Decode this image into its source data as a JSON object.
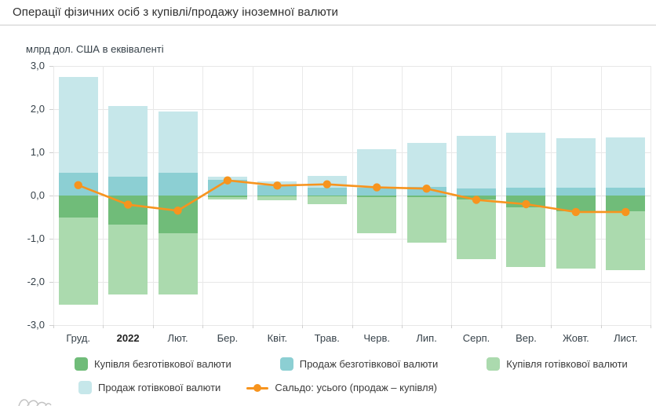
{
  "header": {
    "title": "Операції фізичних осіб з купівлі/продажу іноземної валюти"
  },
  "chart_data": {
    "type": "bar",
    "subtype": "stacked-bars-with-line",
    "unit_label": "млрд дол. США в еквіваленті",
    "categories": [
      "Груд.",
      "2022",
      "Лют.",
      "Бер.",
      "Квіт.",
      "Трав.",
      "Черв.",
      "Лип.",
      "Серп.",
      "Вер.",
      "Жовт.",
      "Лист."
    ],
    "emphasized_category_index": 1,
    "ylim": [
      -3,
      3
    ],
    "yticks": [
      {
        "value": 3,
        "label": "3,0"
      },
      {
        "value": 2,
        "label": "2,0"
      },
      {
        "value": 1,
        "label": "1,0"
      },
      {
        "value": 0,
        "label": "0,0"
      },
      {
        "value": -1,
        "label": "-1,0"
      },
      {
        "value": -2,
        "label": "-2,0"
      },
      {
        "value": -3,
        "label": "-3,0"
      }
    ],
    "grid": true,
    "series": [
      {
        "name": "Купівля безготівкової валюти",
        "color": "#70bc79",
        "values": [
          -0.5,
          -0.67,
          -0.87,
          -0.03,
          -0.02,
          -0.02,
          -0.03,
          -0.04,
          -0.09,
          -0.27,
          -0.36,
          -0.36
        ]
      },
      {
        "name": "Продаж безготівкової валюти",
        "color": "#8ccfd3",
        "values": [
          0.52,
          0.43,
          0.53,
          0.36,
          0.24,
          0.18,
          0.18,
          0.2,
          0.17,
          0.18,
          0.18,
          0.19
        ]
      },
      {
        "name": "Купівля готівкової валюти",
        "color": "#abdaae",
        "values": [
          -2.03,
          -1.63,
          -1.42,
          -0.07,
          -0.09,
          -0.18,
          -0.85,
          -1.05,
          -1.38,
          -1.38,
          -1.34,
          -1.37
        ]
      },
      {
        "name": "Продаж готівкової валюти",
        "color": "#c6e7ea",
        "values": [
          2.23,
          1.65,
          1.41,
          0.08,
          0.09,
          0.27,
          0.89,
          1.02,
          1.21,
          1.27,
          1.14,
          1.16
        ]
      }
    ],
    "line": {
      "name": "Сальдо: усього (продаж – купівля)",
      "color": "#f7941e",
      "values": [
        0.24,
        -0.21,
        -0.35,
        0.35,
        0.23,
        0.26,
        0.19,
        0.16,
        -0.1,
        -0.2,
        -0.38,
        -0.38
      ]
    },
    "legend_position": "bottom"
  },
  "legend": {
    "rows": [
      [
        {
          "type": "swatch",
          "color": "#70bc79",
          "label": "Купівля безготівкової валюти"
        },
        {
          "type": "swatch",
          "color": "#8ccfd3",
          "label": "Продаж безготівкової валюти"
        },
        {
          "type": "swatch",
          "color": "#abdaae",
          "label": "Купівля готівкової валюти"
        }
      ],
      [
        {
          "type": "swatch",
          "color": "#c6e7ea",
          "label": "Продаж готівкової валюти"
        },
        {
          "type": "line",
          "color": "#f7941e",
          "label": "Сальдо: усього (продаж – купівля)"
        }
      ]
    ]
  }
}
